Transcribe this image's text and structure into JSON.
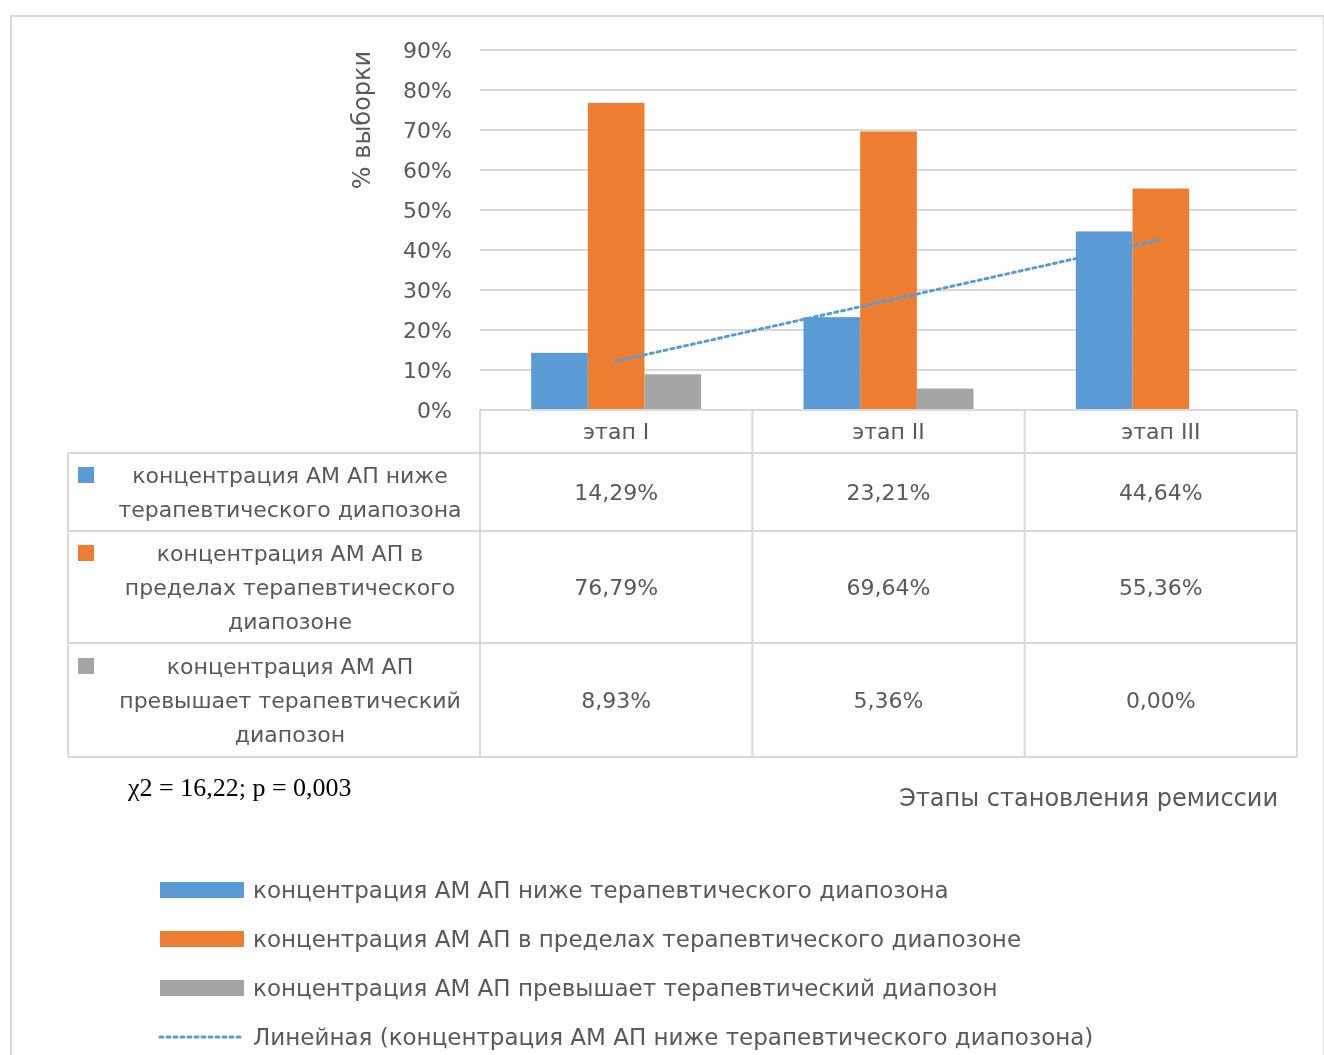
{
  "chart_data": {
    "type": "bar",
    "ylabel": "% выборки",
    "categories": [
      "этап I",
      "этап II",
      "этап III"
    ],
    "series": [
      {
        "name": "концентрация АМ АП ниже терапевтического диапозона",
        "color": "#5b9bd5",
        "values": [
          14.29,
          23.21,
          44.64
        ],
        "value_labels": [
          "14,29%",
          "23,21%",
          "44,64%"
        ]
      },
      {
        "name": "концентрация АМ АП в пределах терапевтического диапозоне",
        "color": "#ed7d31",
        "values": [
          76.79,
          69.64,
          55.36
        ],
        "value_labels": [
          "76,79%",
          "69,64%",
          "55,36%"
        ]
      },
      {
        "name": "концентрация АМ АП превышает терапевтический диапозон",
        "color": "#a5a5a5",
        "values": [
          8.93,
          5.36,
          0.0
        ],
        "value_labels": [
          "8,93%",
          "5,36%",
          "0,00%"
        ]
      },
      {
        "name": "Линейная (концентрация АМ АП ниже терапевтического диапозона)",
        "type": "line",
        "line_style": "dotted",
        "marker": "none",
        "color": "#5b9bd5",
        "values": [
          12.2,
          27.4,
          42.6
        ]
      }
    ],
    "ylim": [
      0,
      90
    ],
    "yticks": [
      {
        "value": 0,
        "label": "0%"
      },
      {
        "value": 10,
        "label": "10%"
      },
      {
        "value": 20,
        "label": "20%"
      },
      {
        "value": 30,
        "label": "30%"
      },
      {
        "value": 40,
        "label": "40%"
      },
      {
        "value": 50,
        "label": "50%"
      },
      {
        "value": 60,
        "label": "60%"
      },
      {
        "value": 70,
        "label": "70%"
      },
      {
        "value": 80,
        "label": "80%"
      },
      {
        "value": 90,
        "label": "90%"
      }
    ],
    "grid": "y",
    "legend": "bottom",
    "annotations": [
      "χ2  = 16,22; p = 0,003",
      "Этапы становления ремиссии"
    ]
  }
}
